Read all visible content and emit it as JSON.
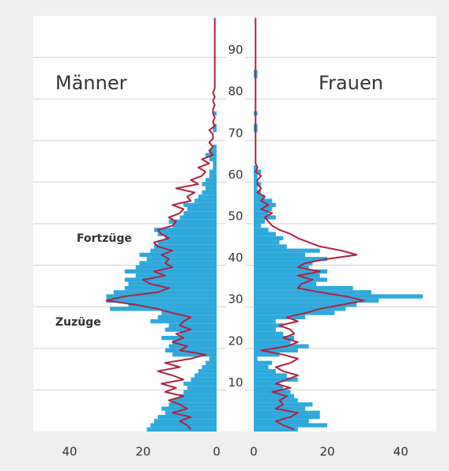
{
  "chart_data": {
    "type": "population_pyramid",
    "ylim": [
      0,
      100
    ],
    "yticks": [
      10,
      20,
      30,
      40,
      50,
      60,
      70,
      80,
      90
    ],
    "xlim": [
      0,
      50
    ],
    "xticks": [
      0,
      20,
      40
    ],
    "grid": true,
    "bar_label": "Zuzüge",
    "line_label": "Fortzüge",
    "bar_color": "#2fa9dc",
    "line_color": "#ad2340",
    "ages": [
      0,
      1,
      2,
      3,
      4,
      5,
      6,
      7,
      8,
      9,
      10,
      11,
      12,
      13,
      14,
      15,
      16,
      17,
      18,
      19,
      20,
      21,
      22,
      23,
      24,
      25,
      26,
      27,
      28,
      29,
      30,
      31,
      32,
      33,
      34,
      35,
      36,
      37,
      38,
      39,
      40,
      41,
      42,
      43,
      44,
      45,
      46,
      47,
      48,
      49,
      50,
      51,
      52,
      53,
      54,
      55,
      56,
      57,
      58,
      59,
      60,
      61,
      62,
      63,
      64,
      65,
      66,
      67,
      68,
      69,
      70,
      71,
      72,
      73,
      74,
      75,
      76,
      77,
      78,
      79,
      80,
      81,
      82,
      83,
      84,
      85,
      86,
      87,
      88,
      89,
      90,
      91,
      92,
      93,
      94,
      95,
      96,
      97,
      98,
      99
    ],
    "panels": [
      {
        "title": "Männer",
        "side": "left",
        "values": [
          19,
          18,
          17,
          16,
          14,
          15,
          13,
          12,
          10,
          9,
          8,
          9,
          7,
          6,
          5,
          4,
          3,
          2,
          12,
          14,
          13,
          12,
          15,
          10,
          14,
          13,
          18,
          16,
          15,
          29,
          24,
          30,
          30,
          28,
          25,
          24,
          25,
          22,
          25,
          22,
          21,
          19,
          21,
          18,
          17,
          16,
          14,
          16,
          17,
          12,
          13,
          10,
          9,
          8,
          9,
          6,
          5,
          4,
          3,
          4,
          3,
          2,
          2,
          1,
          1,
          2,
          3,
          2,
          1,
          0,
          0,
          0,
          1,
          1,
          0,
          0,
          1,
          0,
          0,
          0,
          0,
          0,
          0,
          0,
          0,
          0,
          0,
          0,
          0,
          0,
          0,
          0,
          0,
          0,
          0,
          0,
          0,
          0,
          0,
          0
        ],
        "line_values": [
          7,
          8,
          10,
          7,
          12,
          8,
          10,
          13,
          9,
          14,
          11,
          15,
          9,
          12,
          16,
          10,
          14,
          7,
          3,
          10,
          8,
          12,
          9,
          11,
          7,
          10,
          9,
          7,
          12,
          16,
          22,
          30,
          25,
          16,
          13,
          18,
          20,
          14,
          17,
          12,
          14,
          13,
          15,
          12,
          16,
          17,
          13,
          15,
          16,
          12,
          11,
          13,
          10,
          9,
          12,
          7,
          8,
          6,
          11,
          5,
          7,
          4,
          3,
          5,
          2,
          4,
          1,
          2,
          1,
          2,
          1,
          1,
          2,
          0.5,
          1,
          0.5,
          1,
          1,
          0.5,
          1,
          0.5,
          1,
          0.5,
          0.5,
          0.5,
          0.5,
          0.5,
          0.5,
          0.5,
          0.5,
          0.5,
          0.5,
          0.5,
          0.5,
          0.5,
          0.5,
          0.5,
          0.5,
          0.5,
          0.5
        ]
      },
      {
        "title": "Frauen",
        "side": "right",
        "values": [
          12,
          20,
          15,
          18,
          18,
          14,
          16,
          12,
          11,
          10,
          8,
          7,
          12,
          9,
          6,
          4,
          5,
          1,
          7,
          12,
          15,
          10,
          11,
          8,
          6,
          8,
          6,
          14,
          22,
          25,
          28,
          34,
          46,
          32,
          27,
          17,
          20,
          18,
          20,
          15,
          16,
          20,
          14,
          18,
          9,
          7,
          8,
          6,
          4,
          2,
          3,
          6,
          4,
          5,
          6,
          5,
          3,
          2,
          1,
          2,
          1,
          1,
          2,
          1,
          0,
          0,
          0,
          0,
          0,
          0,
          0,
          0,
          1,
          1,
          0,
          0,
          1,
          0,
          0,
          0,
          0,
          0,
          0,
          0,
          0,
          1,
          1,
          0,
          0,
          0,
          0,
          0,
          0,
          0,
          0,
          0,
          0,
          0,
          0,
          0
        ],
        "line_values": [
          11,
          8,
          6,
          10,
          12,
          6,
          8,
          7,
          9,
          5,
          10,
          6,
          9,
          12,
          8,
          6,
          10,
          12,
          8,
          2,
          9,
          12,
          8,
          11,
          10,
          7,
          12,
          9,
          14,
          18,
          24,
          30,
          25,
          18,
          12,
          13,
          16,
          12,
          18,
          12,
          14,
          20,
          28,
          24,
          18,
          15,
          12,
          10,
          7,
          5,
          4,
          3,
          5,
          2,
          4,
          2,
          3,
          1,
          2,
          1,
          1,
          2,
          0.5,
          1,
          0.5,
          0.5,
          0.5,
          0.5,
          0.5,
          0.5,
          0.5,
          0.5,
          0.5,
          0.5,
          0.5,
          0.5,
          0.5,
          0.5,
          0.5,
          0.5,
          0.5,
          0.5,
          0.5,
          0.5,
          0.5,
          0.5,
          0.5,
          0.5,
          0.5,
          0.5,
          0.5,
          0.5,
          0.5,
          0.5,
          0.5,
          0.5,
          0.5,
          0.5,
          0.5,
          0.5
        ]
      }
    ]
  }
}
